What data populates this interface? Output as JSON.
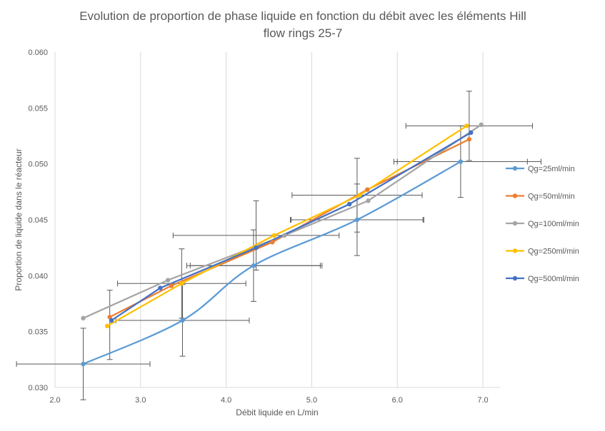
{
  "chart_data": {
    "type": "line",
    "title_line1": "Evolution  de proportion de phase liquide en fonction du débit avec les éléments Hill",
    "title_line2": "flow rings 25-7",
    "xlabel": "Débit liquide en L/min",
    "ylabel": "Proportion de liquide dans le réacteur",
    "xlim": [
      2.0,
      7.2
    ],
    "ylim": [
      0.03,
      0.06
    ],
    "x_ticks": [
      "2.0",
      "3.0",
      "4.0",
      "5.0",
      "6.0",
      "7.0"
    ],
    "y_ticks": [
      "0.030",
      "0.035",
      "0.040",
      "0.045",
      "0.050",
      "0.055",
      "0.060"
    ],
    "grid": "vertical",
    "legend_position": "right",
    "series": [
      {
        "name": "Qg=25ml/min",
        "color": "#5b9bd5",
        "smooth": true,
        "x": [
          2.33,
          3.49,
          4.32,
          5.53,
          6.74
        ],
        "y": [
          0.0321,
          0.036,
          0.0409,
          0.045,
          0.0502
        ],
        "xerr": [
          0.78,
          0.78,
          0.78,
          0.78,
          0.78
        ],
        "yerr": [
          0.0032,
          0.0032,
          0.0032,
          0.0032,
          0.0032
        ]
      },
      {
        "name": "Qg=50ml/min",
        "color": "#ed7d31",
        "smooth": false,
        "x": [
          2.64,
          3.36,
          4.54,
          5.65,
          6.84
        ],
        "y": [
          0.0363,
          0.0391,
          0.043,
          0.0477,
          0.0522
        ],
        "xerr": [],
        "yerr": []
      },
      {
        "name": "Qg=100ml/min",
        "color": "#a5a5a5",
        "smooth": false,
        "x": [
          2.33,
          3.32,
          4.68,
          5.66,
          6.98
        ],
        "y": [
          0.0362,
          0.0396,
          0.0436,
          0.0467,
          0.0535
        ],
        "xerr": [],
        "yerr": []
      },
      {
        "name": "Qg=250ml/min",
        "color": "#ffc000",
        "smooth": false,
        "x": [
          2.61,
          3.48,
          4.56,
          5.56,
          6.81
        ],
        "y": [
          0.0355,
          0.0393,
          0.0436,
          0.0472,
          0.0534
        ],
        "xerr": [],
        "yerr": []
      },
      {
        "name": "Qg=500ml/min",
        "color": "#4472c4",
        "smooth": false,
        "x": [
          2.66,
          3.23,
          4.35,
          5.44,
          6.86
        ],
        "y": [
          0.036,
          0.0389,
          0.0425,
          0.0464,
          0.0528
        ],
        "xerr": [],
        "yerr": []
      }
    ],
    "extra_error_bars": [
      {
        "x": 2.64,
        "y": 0.0356,
        "xerr": 0.0,
        "yerr": 0.0031
      },
      {
        "x": 3.48,
        "y": 0.0393,
        "xerr": 0.75,
        "yerr": 0.0031
      },
      {
        "x": 4.35,
        "y": 0.0436,
        "xerr": 0.97,
        "yerr": 0.0031
      },
      {
        "x": 4.35,
        "y": 0.0409,
        "xerr": 0.77,
        "yerr": 0.0
      },
      {
        "x": 5.53,
        "y": 0.0472,
        "xerr": 0.76,
        "yerr": 0.0033
      },
      {
        "x": 5.53,
        "y": 0.045,
        "xerr": 0.77,
        "yerr": 0.0
      },
      {
        "x": 6.84,
        "y": 0.0534,
        "xerr": 0.74,
        "yerr": 0.0031
      },
      {
        "x": 6.84,
        "y": 0.0502,
        "xerr": 0.84,
        "yerr": 0.0
      }
    ]
  }
}
